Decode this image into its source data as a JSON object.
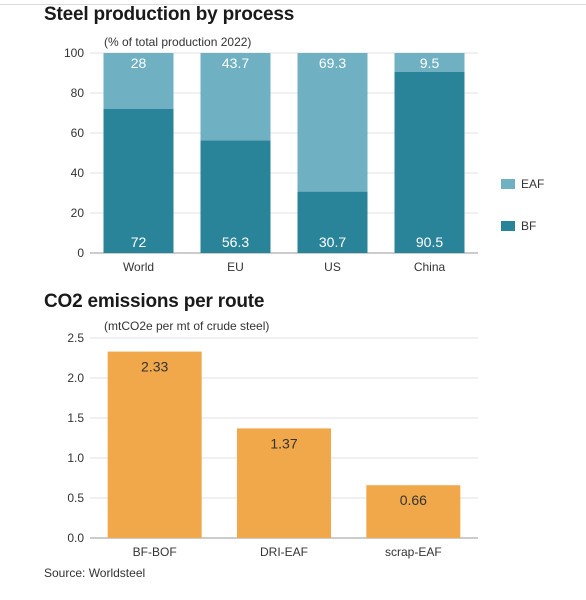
{
  "chart_data": [
    {
      "type": "bar",
      "stacked": true,
      "title": "Steel production by process",
      "subtitle": "(% of total production 2022)",
      "categories": [
        "World",
        "EU",
        "US",
        "China"
      ],
      "series": [
        {
          "name": "BF",
          "values": [
            72,
            56.3,
            30.7,
            90.5
          ],
          "labels": [
            "72",
            "56.3",
            "30.7",
            "90.5"
          ],
          "color": "#2a8499"
        },
        {
          "name": "EAF",
          "values": [
            28,
            43.7,
            69.3,
            9.5
          ],
          "labels": [
            "28",
            "43.7",
            "69.3",
            "9.5"
          ],
          "color": "#6fb0c2"
        }
      ],
      "ylim": [
        0,
        100
      ],
      "yticks": [
        "0",
        "20",
        "40",
        "60",
        "80",
        "100"
      ],
      "grid": true,
      "legend_position": "right"
    },
    {
      "type": "bar",
      "title": "CO2 emissions per route",
      "subtitle": "(mtCO2e per mt of crude steel)",
      "categories": [
        "BF-BOF",
        "DRI-EAF",
        "scrap-EAF"
      ],
      "values": [
        2.33,
        1.37,
        0.66
      ],
      "labels": [
        "2.33",
        "1.37",
        "0.66"
      ],
      "color": "#f0a84a",
      "ylim": [
        0,
        2.5
      ],
      "yticks": [
        "0.0",
        "0.5",
        "1.0",
        "1.5",
        "2.0",
        "2.5"
      ],
      "grid": true
    }
  ],
  "source": "Source: Worldsteel"
}
